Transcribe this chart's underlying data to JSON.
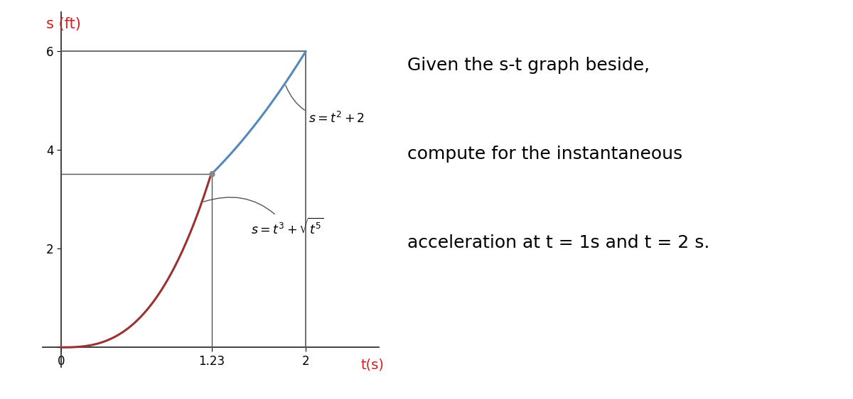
{
  "background_color": "#ffffff",
  "xlim": [
    -0.15,
    2.6
  ],
  "ylim": [
    -0.4,
    6.8
  ],
  "xticks": [
    0,
    1.23,
    2
  ],
  "yticks": [
    0,
    2,
    4,
    6
  ],
  "xlabel": "t(s)",
  "ylabel": "s (ft)",
  "ylabel_color": "#cc2222",
  "xlabel_color": "#cc2222",
  "curve1_color": "#5588bb",
  "curve2_color": "#993333",
  "line_color": "#555555",
  "t_intersect": 1.2311,
  "label1": "$s = t^2 + 2$",
  "label2": "$s = t^3 + \\sqrt{t^5}$",
  "right_text_line1": "Given the s-t graph beside,",
  "right_text_line2": "compute for the instantaneous",
  "right_text_line3": "acceleration at t = 1s and t = 2 s.",
  "text_fontsize": 18,
  "axis_fontsize": 14,
  "tick_fontsize": 12
}
